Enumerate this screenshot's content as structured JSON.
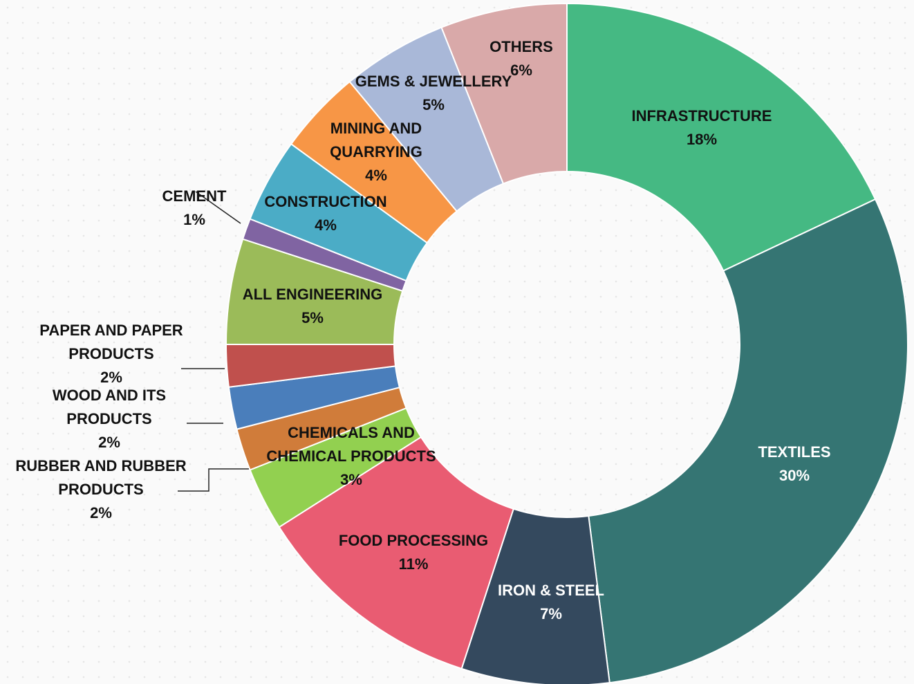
{
  "chart_data": {
    "type": "donut",
    "categories": [
      "INFRASTRUCTURE",
      "TEXTILES",
      "IRON & STEEL",
      "FOOD PROCESSING",
      "CHEMICALS AND CHEMICAL PRODUCTS",
      "RUBBER AND RUBBER PRODUCTS",
      "WOOD AND ITS PRODUCTS",
      "PAPER AND PAPER PRODUCTS",
      "ALL ENGINEERING",
      "CEMENT",
      "CONSTRUCTION",
      "MINING AND QUARRYING",
      "GEMS & JEWELLERY",
      "OTHERS"
    ],
    "values": [
      18,
      30,
      7,
      11,
      3,
      2,
      2,
      2,
      5,
      1,
      4,
      4,
      5,
      6
    ],
    "value_labels": [
      "18%",
      "30%",
      "7%",
      "11%",
      "3%",
      "2%",
      "2%",
      "2%",
      "5%",
      "1%",
      "4%",
      "4%",
      "5%",
      "6%"
    ],
    "colors": [
      "#45b983",
      "#357573",
      "#34495e",
      "#e95c72",
      "#92d050",
      "#d07c3a",
      "#4a7ebb",
      "#c0504d",
      "#9bbb59",
      "#8064a2",
      "#4bacc6",
      "#f79646",
      "#a9b8d8",
      "#d9a9a9"
    ]
  }
}
